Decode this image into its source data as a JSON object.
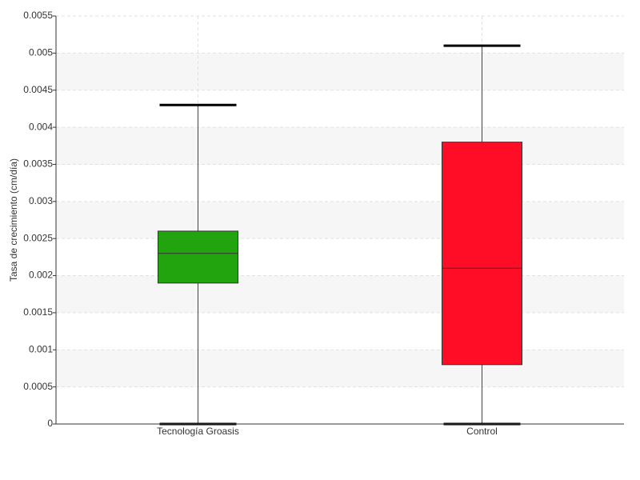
{
  "chart_data": {
    "type": "box",
    "y_label": "Tasa de crecimiento (cm/día)",
    "categories": [
      "Tecnología Groasis",
      "Control"
    ],
    "boxes": [
      {
        "min": 0,
        "q1": 0.0019,
        "median": 0.0023,
        "q3": 0.0026,
        "max": 0.0043,
        "color": "#22a40e"
      },
      {
        "min": 0,
        "q1": 0.0008,
        "median": 0.0021,
        "q3": 0.0038,
        "max": 0.0051,
        "color": "#ff0d27"
      }
    ],
    "ylim": [
      0,
      0.0055
    ],
    "yticks": [
      0,
      0.0005,
      0.001,
      0.0015,
      0.002,
      0.0025,
      0.003,
      0.0035,
      0.004,
      0.0045,
      0.005,
      0.0055
    ],
    "grid": true
  }
}
